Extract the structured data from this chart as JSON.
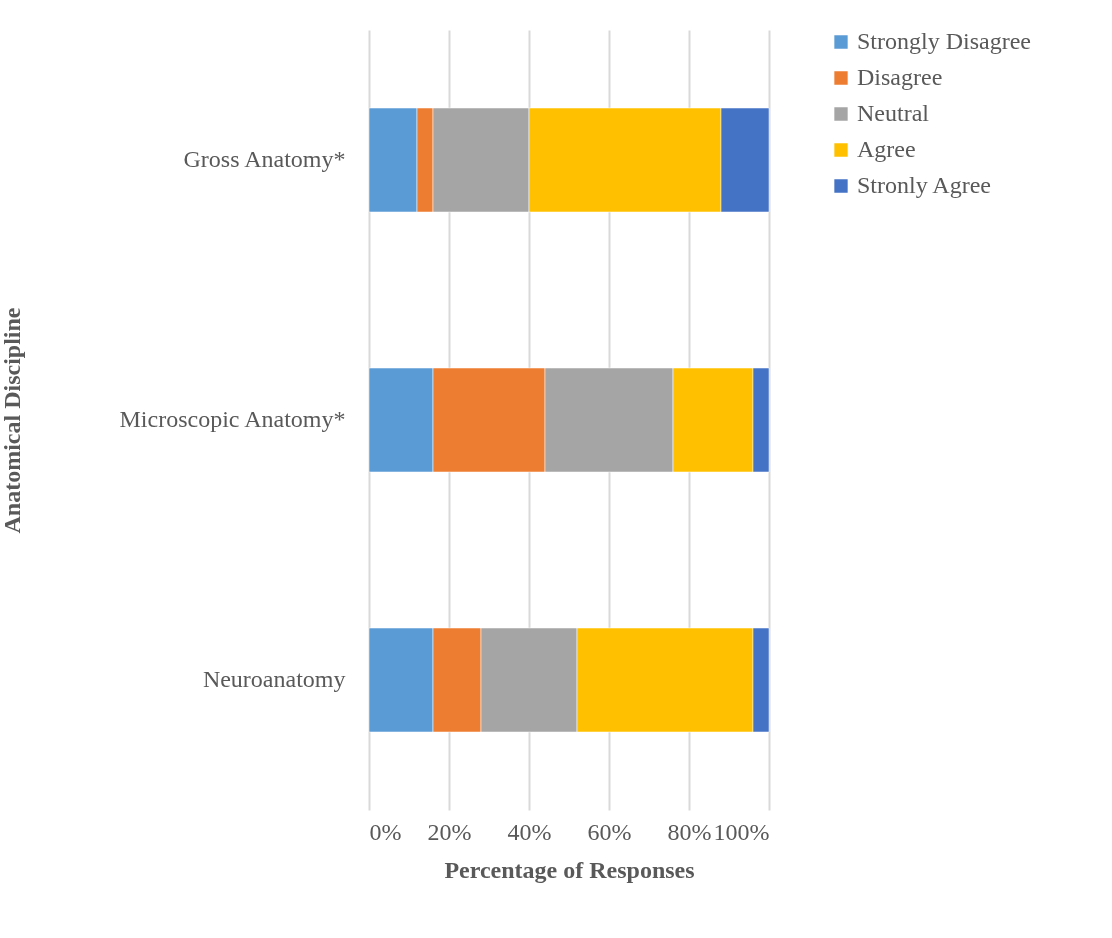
{
  "chart_data": {
    "type": "bar",
    "orientation": "horizontal",
    "stacked": true,
    "xlabel": "Percentage of Responses",
    "ylabel": "Anatomical Discipline",
    "categories": [
      "Gross Anatomy*",
      "Microscopic Anatomy*",
      "Neuroanatomy"
    ],
    "series": [
      {
        "name": "Strongly Disagree",
        "color": "#5b9bd5",
        "values": [
          12,
          16,
          16
        ]
      },
      {
        "name": "Disagree",
        "color": "#ed7d31",
        "values": [
          4,
          28,
          12
        ]
      },
      {
        "name": "Neutral",
        "color": "#a5a5a5",
        "values": [
          24,
          32,
          24
        ]
      },
      {
        "name": "Agree",
        "color": "#ffc000",
        "values": [
          48,
          20,
          44
        ]
      },
      {
        "name": "Stronly Agree",
        "color": "#4472c4",
        "values": [
          12,
          4,
          4
        ]
      }
    ],
    "xlim": [
      0,
      100
    ],
    "xticks": [
      {
        "value": 0,
        "label": "0%"
      },
      {
        "value": 20,
        "label": "20%"
      },
      {
        "value": 40,
        "label": "40%"
      },
      {
        "value": 60,
        "label": "60%"
      },
      {
        "value": 80,
        "label": "80%"
      },
      {
        "value": 100,
        "label": "100%"
      }
    ],
    "grid": "x",
    "legend": "right"
  }
}
